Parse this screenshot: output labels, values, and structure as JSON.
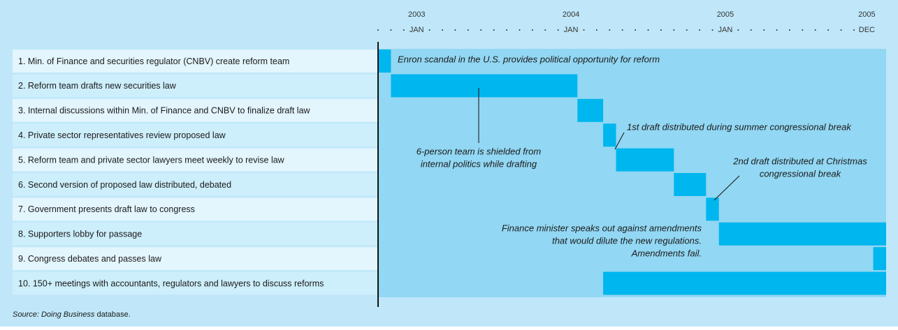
{
  "chart_data": {
    "type": "gantt",
    "color": "#00b6ee",
    "xlim": [
      -3,
      36.5
    ],
    "xticks": [
      {
        "value": 0,
        "label": "JAN",
        "year": "2003"
      },
      {
        "value": 12,
        "label": "JAN",
        "year": "2004"
      },
      {
        "value": 24,
        "label": "JAN",
        "year": "2005"
      },
      {
        "value": 35,
        "label": "DEC",
        "year": "2005"
      }
    ],
    "minor_xticks": [
      -3,
      -2,
      -1,
      1,
      2,
      3,
      4,
      5,
      6,
      7,
      8,
      9,
      10,
      11,
      13,
      14,
      15,
      16,
      17,
      18,
      19,
      20,
      21,
      22,
      23,
      25,
      26,
      27,
      28,
      29,
      30,
      31,
      32,
      33,
      34
    ],
    "tasks": [
      {
        "name": "1.  Min. of Finance and securities regulator (CNBV) create reform team",
        "start": -3,
        "end": -2
      },
      {
        "name": "2.  Reform team drafts new securities law",
        "start": -2,
        "end": 12.5
      },
      {
        "name": "3.  Internal discussions within Min. of Finance and CNBV to finalize draft law",
        "start": 12.5,
        "end": 14.5
      },
      {
        "name": "4.  Private sector representatives review proposed law",
        "start": 14.5,
        "end": 15.5
      },
      {
        "name": "5.  Reform team and private sector lawyers meet weekly to revise law",
        "start": 15.5,
        "end": 20
      },
      {
        "name": "6.  Second version of proposed law distributed, debated",
        "start": 20,
        "end": 22.5
      },
      {
        "name": "7.  Government presents draft law to congress",
        "start": 22.5,
        "end": 23.5
      },
      {
        "name": "8.  Supporters lobby for passage",
        "start": 23.5,
        "end": 36.5
      },
      {
        "name": "9.  Congress debates and passes law",
        "start": 35.5,
        "end": 36.5
      },
      {
        "name": "10.  150+ meetings with accountants, regulators and lawyers to discuss reforms",
        "start": 14.5,
        "end": 36.5
      }
    ],
    "annotations": [
      {
        "lines": [
          "Enron scandal in the U.S. provides political opportunity for reform"
        ]
      },
      {
        "lines": [
          "6-person team is shielded from",
          "internal politics while drafting"
        ]
      },
      {
        "lines": [
          "1st draft distributed during summer congressional break"
        ]
      },
      {
        "lines": [
          "2nd draft distributed at Christmas",
          "congressional break"
        ]
      },
      {
        "lines": [
          "Finance minister speaks out against amendments",
          "that would dilute the new regulations.",
          "Amendments fail."
        ]
      }
    ],
    "source": [
      "Source: Doing Business",
      " database."
    ]
  }
}
